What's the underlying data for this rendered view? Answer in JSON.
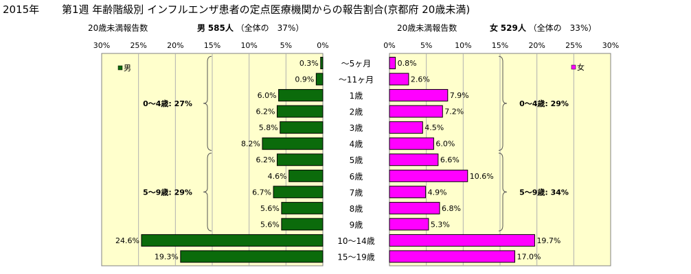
{
  "title": {
    "year": "2015年",
    "text": "第1週 年齢階級別 インフルエンザ患者の定点医療機関からの報告割合(京都府 20歳未満)"
  },
  "left_header": {
    "label": "20歳未満報告数",
    "sex": "男",
    "count": "585人",
    "share": "（全体の　37%）"
  },
  "right_header": {
    "label": "20歳未満報告数",
    "sex": "女",
    "count": "529人",
    "share": "（全体の　33%）"
  },
  "chart_data": {
    "type": "bar",
    "orientation": "horizontal-butterfly",
    "categories": [
      "～5ヶ月",
      "～11ヶ月",
      "1歳",
      "2歳",
      "3歳",
      "4歳",
      "5歳",
      "6歳",
      "7歳",
      "8歳",
      "9歳",
      "10～14歳",
      "15～19歳"
    ],
    "series": [
      {
        "name": "男",
        "values": [
          0.3,
          0.9,
          6.0,
          6.2,
          5.8,
          8.2,
          6.2,
          4.6,
          6.7,
          5.6,
          5.6,
          24.6,
          19.3
        ],
        "color": "#0b6b0b"
      },
      {
        "name": "女",
        "values": [
          0.8,
          2.6,
          7.9,
          7.2,
          4.5,
          6.0,
          6.6,
          10.6,
          4.9,
          6.8,
          5.3,
          19.7,
          17.0
        ],
        "color": "#ff00ff"
      }
    ],
    "xlim": [
      0,
      30
    ],
    "xticks": [
      "0%",
      "5%",
      "10%",
      "15%",
      "20%",
      "25%",
      "30%"
    ],
    "tick_values": [
      0,
      5,
      10,
      15,
      20,
      25,
      30
    ],
    "legend_position": "top-corner",
    "groups": {
      "male": [
        {
          "label": "0～4歳: 27%",
          "from": 0,
          "to": 5
        },
        {
          "label": "5～9歳: 29%",
          "from": 6,
          "to": 10
        }
      ],
      "female": [
        {
          "label": "0～4歳: 29%",
          "from": 0,
          "to": 5
        },
        {
          "label": "5～9歳: 34%",
          "from": 6,
          "to": 10
        }
      ]
    },
    "grid": true
  },
  "colors": {
    "plot_bg": "#ffffcc",
    "grid": "#b0b0b0",
    "male": "#0b6b0b",
    "female": "#ff00ff"
  }
}
